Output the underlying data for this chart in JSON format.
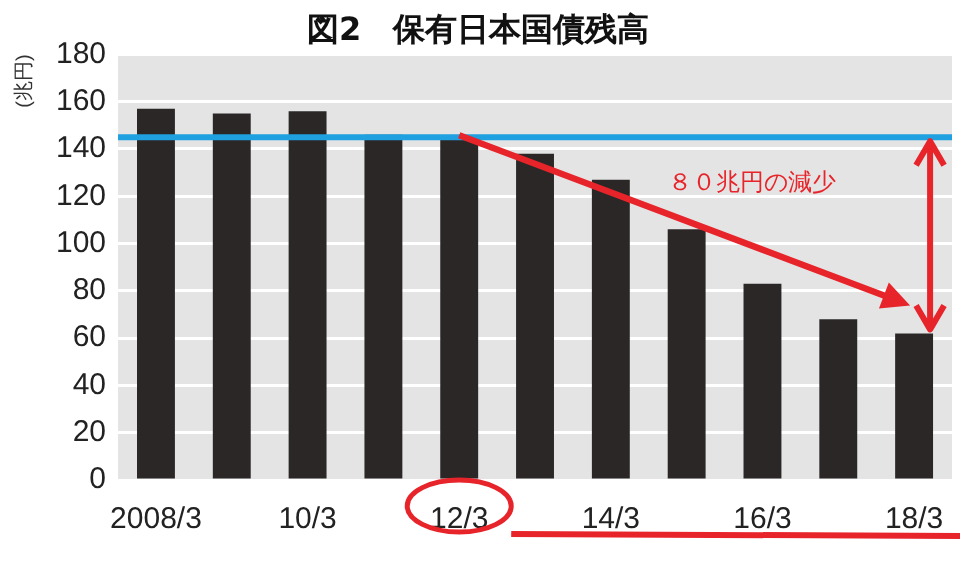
{
  "chart_data": {
    "type": "bar",
    "title": "図2　保有日本国債残高",
    "ylabel": "(兆円)",
    "categories": [
      "2008/3",
      null,
      "10/3",
      null,
      "12/3",
      null,
      "14/3",
      null,
      "16/3",
      null,
      "18/3"
    ],
    "values": [
      157,
      155,
      156,
      146,
      145,
      138,
      127,
      106,
      83,
      68,
      62
    ],
    "color": "#2b2727",
    "ylim": [
      0,
      180
    ],
    "yticks": [
      0,
      20,
      40,
      60,
      80,
      100,
      120,
      140,
      160,
      180
    ],
    "grid": "y",
    "ref_lines": [
      {
        "axis": "y",
        "value": 145,
        "color": "#1fa0e0"
      }
    ],
    "annotations": [
      "８０兆円の減少"
    ]
  }
}
